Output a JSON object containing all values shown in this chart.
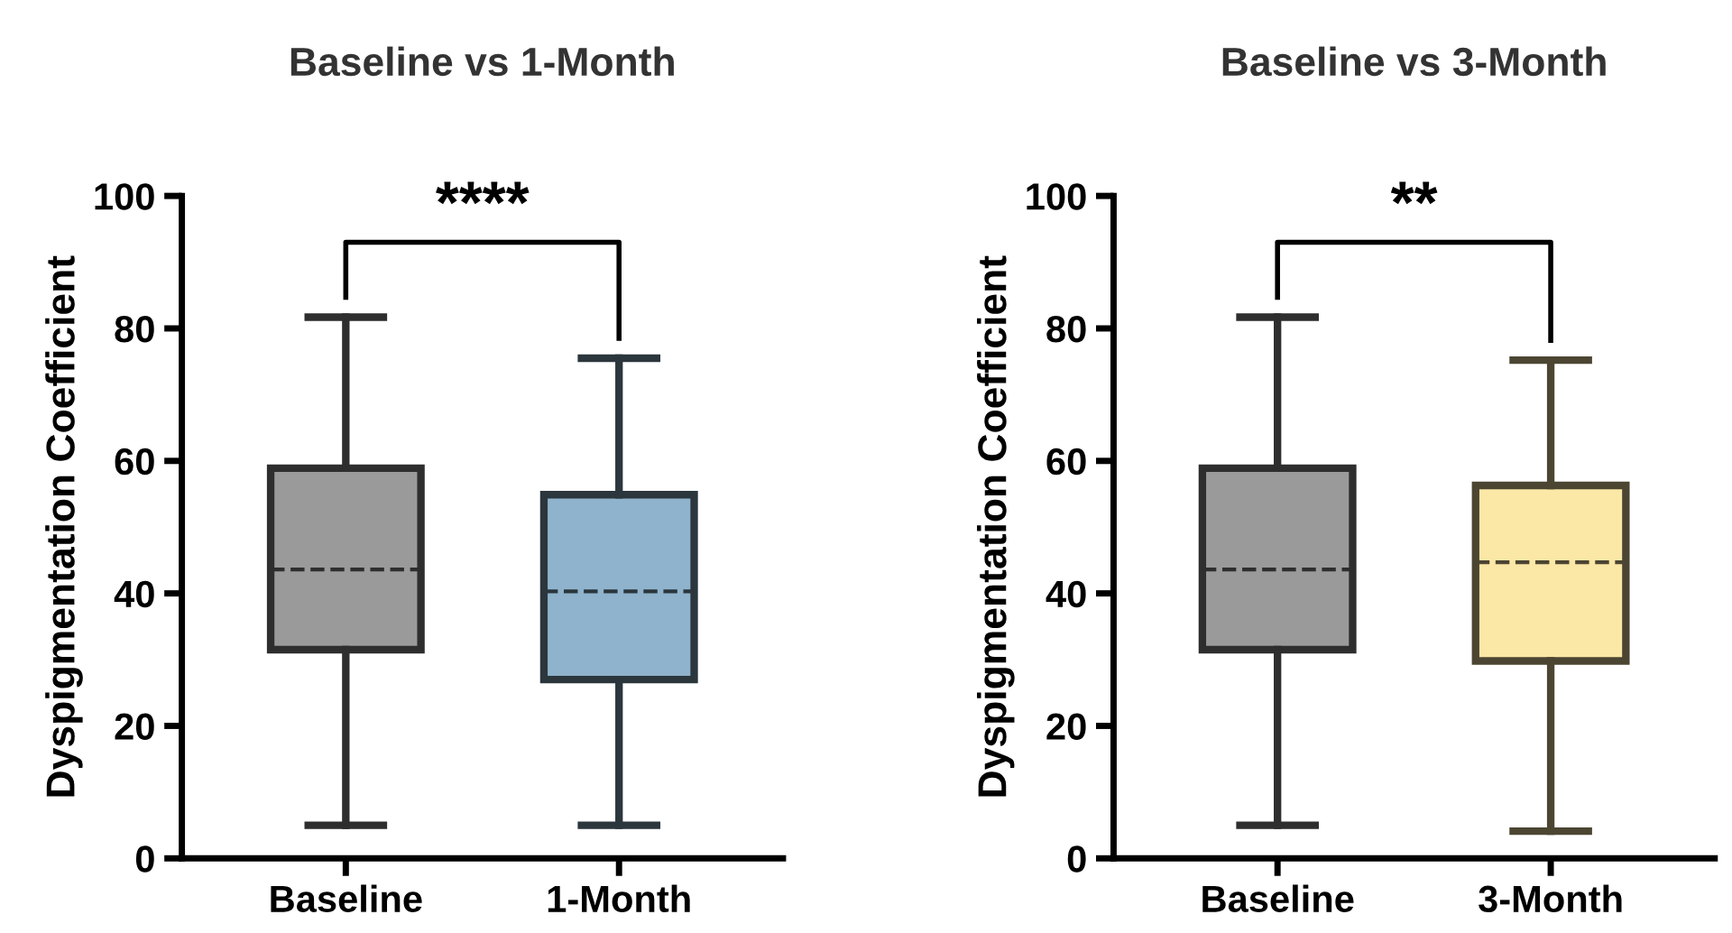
{
  "chart_data": [
    {
      "type": "box",
      "title": "Baseline vs 1-Month",
      "ylabel": "Dyspigmentation Coefficient",
      "categories": [
        "Baseline",
        "1-Month"
      ],
      "boxes": [
        {
          "low": 5,
          "q1": 31.5,
          "median": 43.6,
          "q3": 58.9,
          "high": 81.7
        },
        {
          "low": 5,
          "q1": 27,
          "median": 40.3,
          "q3": 54.9,
          "high": 75.5
        }
      ],
      "colors": [
        "#9a9a9a",
        "#8fb3cc"
      ],
      "ylim": [
        0,
        100
      ],
      "yticks": [
        0,
        20,
        40,
        60,
        80,
        100
      ],
      "annotations": [
        "****"
      ]
    },
    {
      "type": "box",
      "title": "Baseline vs 3-Month",
      "ylabel": "Dyspigmentation Coefficient",
      "categories": [
        "Baseline",
        "3-Month"
      ],
      "boxes": [
        {
          "low": 5,
          "q1": 31.5,
          "median": 43.6,
          "q3": 58.9,
          "high": 81.7
        },
        {
          "low": 4.1,
          "q1": 29.8,
          "median": 44.7,
          "q3": 56.3,
          "high": 75.2
        }
      ],
      "colors": [
        "#9a9a9a",
        "#fbe7a6"
      ],
      "ylim": [
        0,
        100
      ],
      "yticks": [
        0,
        20,
        40,
        60,
        80,
        100
      ],
      "annotations": [
        "**"
      ]
    }
  ]
}
